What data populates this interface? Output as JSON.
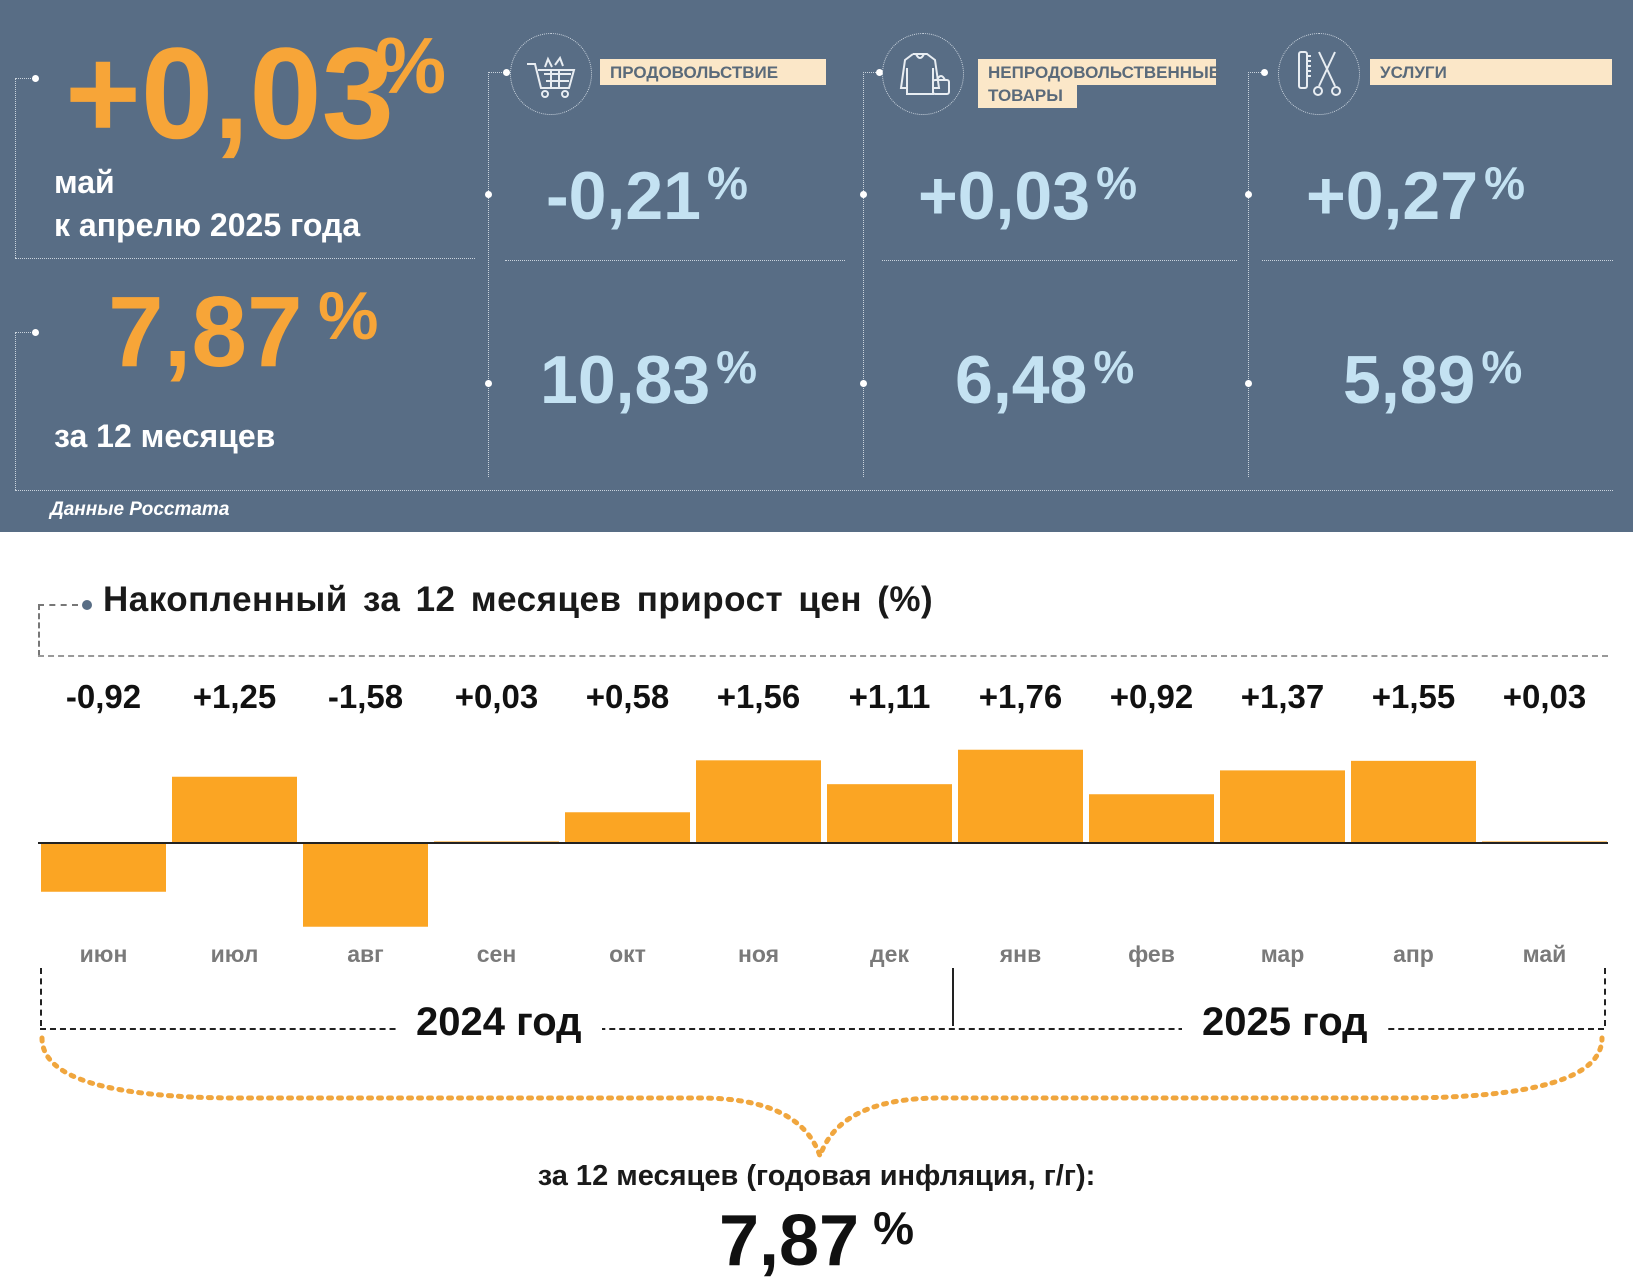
{
  "monthly": {
    "value": "+0,03",
    "unit": "%",
    "caption_line1": "май",
    "caption_line2": "к апрелю 2025 года"
  },
  "annual": {
    "value": "7,87",
    "unit": "%",
    "caption": "за 12 месяцев"
  },
  "categories": [
    {
      "label_line1": "ПРОДОВОЛЬСТВИЕ",
      "label_line2": "",
      "icon": "shopping-cart-icon",
      "monthly": "-0,21",
      "annual": "10,83",
      "unit": "%"
    },
    {
      "label_line1": "НЕПРОДОВОЛЬСТВЕННЫЕ",
      "label_line2": "ТОВАРЫ",
      "icon": "clothes-icon",
      "monthly": "+0,03",
      "annual": "6,48",
      "unit": "%"
    },
    {
      "label_line1": "УСЛУГИ",
      "label_line2": "",
      "icon": "scissors-comb-icon",
      "monthly": "+0,27",
      "annual": "5,89",
      "unit": "%"
    }
  ],
  "source": "Данные Росстата",
  "colors": {
    "panel": "#586d85",
    "orange": "#f7a538",
    "light_blue": "#c4e2f2",
    "bar": "#fba523",
    "label_bg": "#fbe7c8"
  },
  "chart_data": {
    "type": "bar",
    "title": "Накопленный за 12 месяцев прирост цен (%)",
    "categories": [
      "июн",
      "июл",
      "авг",
      "сен",
      "окт",
      "ноя",
      "дек",
      "янв",
      "фев",
      "мар",
      "апр",
      "май"
    ],
    "values": [
      -0.92,
      1.25,
      -1.58,
      0.03,
      0.58,
      1.56,
      1.11,
      1.76,
      0.92,
      1.37,
      1.55,
      0.03
    ],
    "value_labels": [
      "-0,92",
      "+1,25",
      "-1,58",
      "+0,03",
      "+0,58",
      "+1,56",
      "+1,11",
      "+1,76",
      "+0,92",
      "+1,37",
      "+1,55",
      "+0,03"
    ],
    "year_groups": [
      {
        "label": "2024 год",
        "months": 7
      },
      {
        "label": "2025 год",
        "months": 5
      }
    ],
    "summary_text": "за 12 месяцев (годовая инфляция, г/г):",
    "summary_value": "7,87",
    "summary_unit": "%",
    "grid": false,
    "legend": "none"
  }
}
